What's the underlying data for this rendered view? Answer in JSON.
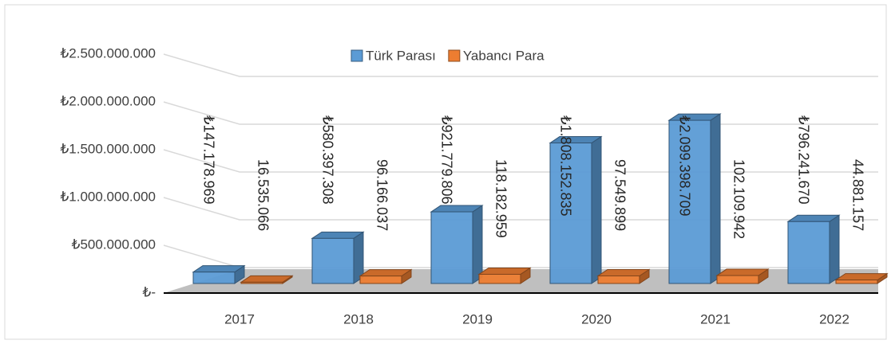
{
  "chart_data": {
    "type": "bar3d",
    "categories": [
      "2017",
      "2018",
      "2019",
      "2020",
      "2021",
      "2022"
    ],
    "series": [
      {
        "name": "Türk Parası",
        "color": "#5b9bd5",
        "values": [
          147178969,
          580397308,
          921779806,
          1808152835,
          2099398709,
          796241670
        ],
        "value_labels": [
          "₺147.178.969",
          "₺580.397.308",
          "₺921.779.806",
          "₺1.808.152.835",
          "₺2.099.398.709",
          "₺796.241.670"
        ]
      },
      {
        "name": "Yabancı Para",
        "color": "#ed7d31",
        "values": [
          16535066,
          96166037,
          118182959,
          97549899,
          102109942,
          44881157
        ],
        "value_labels": [
          "16.535.066",
          "96.166.037",
          "118.182.959",
          "97.549.899",
          "102.109.942",
          "44.881.157"
        ]
      }
    ],
    "ylim": [
      0,
      2500000000
    ],
    "yticks": [
      {
        "value": 0,
        "label": "₺-"
      },
      {
        "value": 500000000,
        "label": "₺500.000.000"
      },
      {
        "value": 1000000000,
        "label": "₺1.000.000.000"
      },
      {
        "value": 1500000000,
        "label": "₺1.500.000.000"
      },
      {
        "value": 2000000000,
        "label": "₺2.000.000.000"
      },
      {
        "value": 2500000000,
        "label": "₺2.500.000.000"
      }
    ],
    "grid": true
  }
}
